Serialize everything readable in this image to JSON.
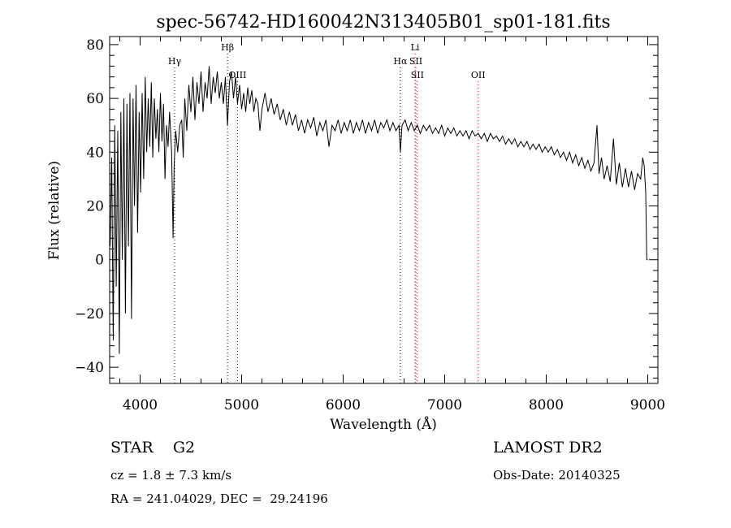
{
  "chart_data": {
    "type": "line",
    "title": "spec-56742-HD160042N313405B01_sp01-181.fits",
    "xlabel": "Wavelength (Å)",
    "ylabel": "Flux (relative)",
    "xlim": [
      3700,
      9100
    ],
    "ylim": [
      -46,
      83
    ],
    "xticks": [
      4000,
      5000,
      6000,
      7000,
      8000,
      9000
    ],
    "yticks": [
      -40,
      -20,
      0,
      20,
      40,
      60,
      80
    ],
    "grid": false,
    "series": [
      {
        "color": "#000000",
        "points": [
          [
            3705,
            5
          ],
          [
            3720,
            38
          ],
          [
            3735,
            -30
          ],
          [
            3750,
            50
          ],
          [
            3765,
            -10
          ],
          [
            3780,
            48
          ],
          [
            3795,
            -35
          ],
          [
            3810,
            55
          ],
          [
            3825,
            0
          ],
          [
            3840,
            60
          ],
          [
            3855,
            -20
          ],
          [
            3870,
            58
          ],
          [
            3885,
            5
          ],
          [
            3900,
            62
          ],
          [
            3915,
            -22
          ],
          [
            3930,
            60
          ],
          [
            3945,
            20
          ],
          [
            3960,
            65
          ],
          [
            3975,
            10
          ],
          [
            3990,
            55
          ],
          [
            4005,
            25
          ],
          [
            4020,
            62
          ],
          [
            4035,
            30
          ],
          [
            4050,
            68
          ],
          [
            4065,
            40
          ],
          [
            4080,
            60
          ],
          [
            4095,
            42
          ],
          [
            4110,
            66
          ],
          [
            4125,
            38
          ],
          [
            4140,
            60
          ],
          [
            4155,
            45
          ],
          [
            4170,
            56
          ],
          [
            4185,
            40
          ],
          [
            4200,
            62
          ],
          [
            4215,
            44
          ],
          [
            4230,
            58
          ],
          [
            4245,
            30
          ],
          [
            4260,
            50
          ],
          [
            4275,
            42
          ],
          [
            4290,
            55
          ],
          [
            4310,
            40
          ],
          [
            4325,
            8
          ],
          [
            4335,
            35
          ],
          [
            4350,
            48
          ],
          [
            4370,
            40
          ],
          [
            4390,
            50
          ],
          [
            4410,
            52
          ],
          [
            4425,
            38
          ],
          [
            4440,
            60
          ],
          [
            4460,
            48
          ],
          [
            4480,
            65
          ],
          [
            4500,
            55
          ],
          [
            4520,
            68
          ],
          [
            4540,
            52
          ],
          [
            4560,
            66
          ],
          [
            4580,
            58
          ],
          [
            4600,
            70
          ],
          [
            4620,
            55
          ],
          [
            4640,
            66
          ],
          [
            4660,
            60
          ],
          [
            4680,
            72
          ],
          [
            4700,
            58
          ],
          [
            4720,
            68
          ],
          [
            4740,
            62
          ],
          [
            4760,
            70
          ],
          [
            4780,
            60
          ],
          [
            4800,
            66
          ],
          [
            4820,
            58
          ],
          [
            4840,
            68
          ],
          [
            4861,
            50
          ],
          [
            4880,
            66
          ],
          [
            4900,
            70
          ],
          [
            4920,
            60
          ],
          [
            4940,
            68
          ],
          [
            4959,
            58
          ],
          [
            4980,
            65
          ],
          [
            5000,
            56
          ],
          [
            5020,
            62
          ],
          [
            5040,
            55
          ],
          [
            5060,
            64
          ],
          [
            5080,
            58
          ],
          [
            5100,
            63
          ],
          [
            5120,
            55
          ],
          [
            5140,
            60
          ],
          [
            5160,
            58
          ],
          [
            5180,
            48
          ],
          [
            5200,
            56
          ],
          [
            5230,
            62
          ],
          [
            5260,
            55
          ],
          [
            5290,
            60
          ],
          [
            5320,
            54
          ],
          [
            5350,
            58
          ],
          [
            5380,
            52
          ],
          [
            5410,
            56
          ],
          [
            5440,
            50
          ],
          [
            5470,
            55
          ],
          [
            5500,
            50
          ],
          [
            5530,
            54
          ],
          [
            5560,
            48
          ],
          [
            5590,
            52
          ],
          [
            5620,
            47
          ],
          [
            5650,
            52
          ],
          [
            5680,
            49
          ],
          [
            5710,
            53
          ],
          [
            5740,
            46
          ],
          [
            5770,
            51
          ],
          [
            5800,
            48
          ],
          [
            5830,
            52
          ],
          [
            5860,
            42
          ],
          [
            5890,
            50
          ],
          [
            5920,
            48
          ],
          [
            5950,
            52
          ],
          [
            5980,
            47
          ],
          [
            6010,
            51
          ],
          [
            6040,
            48
          ],
          [
            6070,
            52
          ],
          [
            6100,
            47
          ],
          [
            6130,
            51
          ],
          [
            6160,
            48
          ],
          [
            6190,
            52
          ],
          [
            6220,
            47
          ],
          [
            6250,
            51
          ],
          [
            6280,
            48
          ],
          [
            6310,
            52
          ],
          [
            6340,
            47
          ],
          [
            6370,
            51
          ],
          [
            6400,
            49
          ],
          [
            6430,
            52
          ],
          [
            6460,
            48
          ],
          [
            6490,
            51
          ],
          [
            6520,
            48
          ],
          [
            6550,
            50
          ],
          [
            6563,
            40
          ],
          [
            6580,
            50
          ],
          [
            6610,
            52
          ],
          [
            6640,
            48
          ],
          [
            6670,
            51
          ],
          [
            6700,
            48
          ],
          [
            6730,
            50
          ],
          [
            6760,
            47
          ],
          [
            6790,
            50
          ],
          [
            6820,
            48
          ],
          [
            6850,
            50
          ],
          [
            6880,
            47
          ],
          [
            6910,
            49
          ],
          [
            6940,
            47
          ],
          [
            6970,
            50
          ],
          [
            7000,
            46
          ],
          [
            7030,
            49
          ],
          [
            7060,
            47
          ],
          [
            7090,
            49
          ],
          [
            7120,
            46
          ],
          [
            7150,
            48
          ],
          [
            7180,
            46
          ],
          [
            7210,
            48
          ],
          [
            7240,
            45
          ],
          [
            7270,
            48
          ],
          [
            7300,
            46
          ],
          [
            7330,
            47
          ],
          [
            7360,
            45
          ],
          [
            7390,
            47
          ],
          [
            7420,
            44
          ],
          [
            7450,
            47
          ],
          [
            7480,
            45
          ],
          [
            7510,
            46
          ],
          [
            7540,
            44
          ],
          [
            7570,
            46
          ],
          [
            7600,
            43
          ],
          [
            7630,
            45
          ],
          [
            7660,
            43
          ],
          [
            7690,
            45
          ],
          [
            7720,
            42
          ],
          [
            7750,
            44
          ],
          [
            7780,
            42
          ],
          [
            7810,
            44
          ],
          [
            7840,
            41
          ],
          [
            7870,
            43
          ],
          [
            7900,
            41
          ],
          [
            7930,
            43
          ],
          [
            7960,
            40
          ],
          [
            7990,
            42
          ],
          [
            8020,
            40
          ],
          [
            8050,
            42
          ],
          [
            8080,
            39
          ],
          [
            8110,
            41
          ],
          [
            8140,
            38
          ],
          [
            8170,
            40
          ],
          [
            8200,
            37
          ],
          [
            8230,
            40
          ],
          [
            8260,
            36
          ],
          [
            8290,
            39
          ],
          [
            8320,
            35
          ],
          [
            8350,
            38
          ],
          [
            8380,
            34
          ],
          [
            8410,
            37
          ],
          [
            8440,
            33
          ],
          [
            8470,
            36
          ],
          [
            8500,
            50
          ],
          [
            8520,
            32
          ],
          [
            8545,
            38
          ],
          [
            8570,
            30
          ],
          [
            8600,
            35
          ],
          [
            8630,
            29
          ],
          [
            8662,
            45
          ],
          [
            8690,
            28
          ],
          [
            8720,
            36
          ],
          [
            8750,
            27
          ],
          [
            8780,
            34
          ],
          [
            8810,
            27
          ],
          [
            8840,
            33
          ],
          [
            8870,
            26
          ],
          [
            8900,
            32
          ],
          [
            8930,
            30
          ],
          [
            8950,
            38
          ],
          [
            8965,
            35
          ],
          [
            8980,
            25
          ],
          [
            8990,
            0
          ],
          [
            9000,
            0
          ]
        ]
      }
    ],
    "annotations": [
      {
        "label": "Hγ",
        "x": 4340,
        "level": 1,
        "line_color": "#000000"
      },
      {
        "label": "Hβ",
        "x": 4861,
        "level": 0,
        "line_color": "#000000"
      },
      {
        "label": "OIII",
        "x": 4959,
        "level": 2,
        "line_color": "#000000"
      },
      {
        "label": "Hα",
        "x": 6563,
        "level": 1,
        "line_color": "#000000"
      },
      {
        "label": "Li",
        "x": 6708,
        "level": 0,
        "line_color": "#cc0000"
      },
      {
        "label": "SII",
        "x": 6716,
        "level": 1,
        "line_color": "#cc0000"
      },
      {
        "label": "SII",
        "x": 6731,
        "level": 2,
        "line_color": "#cc0000"
      },
      {
        "label": "OII",
        "x": 7330,
        "level": 2,
        "line_color": "#cc0000"
      }
    ]
  },
  "footer": {
    "class_label": "STAR    G2",
    "survey": "LAMOST DR2",
    "cz": "cz = 1.8 ± 7.3 km/s",
    "obs_date": "Obs-Date: 20140325",
    "coords": "RA = 241.04029, DEC =  29.24196"
  }
}
